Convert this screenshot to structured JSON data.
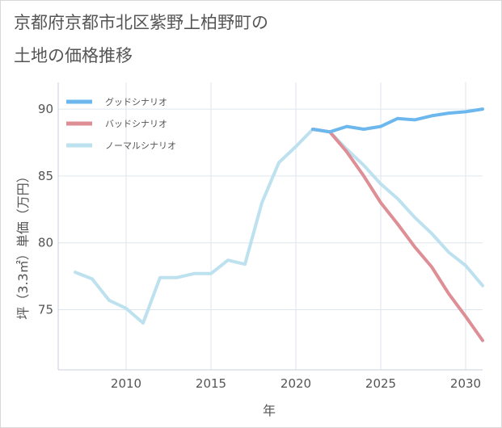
{
  "title_line1": "京都府京都市北区紫野上柏野町の",
  "title_line2": "土地の価格推移",
  "chart_data": {
    "type": "line",
    "xlabel": "年",
    "ylabel": "坪（3.3㎡）単価（万円）",
    "xlim": [
      2006,
      2031
    ],
    "ylim": [
      70.5,
      92
    ],
    "xticks": [
      2010,
      2015,
      2020,
      2025,
      2030
    ],
    "yticks": [
      75,
      80,
      85,
      90
    ],
    "grid": true,
    "legend_position": "top-left",
    "series": [
      {
        "name": "グッドシナリオ",
        "color": "#6cb8ee",
        "x": [
          2021,
          2022,
          2023,
          2024,
          2025,
          2026,
          2027,
          2028,
          2029,
          2030,
          2031
        ],
        "y": [
          88.5,
          88.3,
          88.7,
          88.5,
          88.7,
          89.3,
          89.2,
          89.5,
          89.7,
          89.8,
          90.0
        ]
      },
      {
        "name": "バッドシナリオ",
        "color": "#de8e95",
        "x": [
          2021,
          2022,
          2023,
          2024,
          2025,
          2026,
          2027,
          2028,
          2029,
          2030,
          2031
        ],
        "y": [
          88.5,
          88.3,
          86.8,
          85.0,
          83.0,
          81.4,
          79.7,
          78.2,
          76.2,
          74.5,
          72.7
        ]
      },
      {
        "name": "ノーマルシナリオ",
        "color": "#bde1ee",
        "x": [
          2007,
          2008,
          2009,
          2010,
          2011,
          2012,
          2013,
          2014,
          2015,
          2016,
          2017,
          2018,
          2019,
          2020,
          2021,
          2022,
          2023,
          2024,
          2025,
          2026,
          2027,
          2028,
          2029,
          2030,
          2031
        ],
        "y": [
          77.8,
          77.3,
          75.7,
          75.1,
          74.0,
          77.4,
          77.4,
          77.7,
          77.7,
          78.7,
          78.4,
          83.0,
          86.0,
          87.2,
          88.5,
          88.3,
          87.0,
          85.8,
          84.4,
          83.3,
          81.9,
          80.7,
          79.3,
          78.3,
          76.8
        ]
      }
    ]
  }
}
